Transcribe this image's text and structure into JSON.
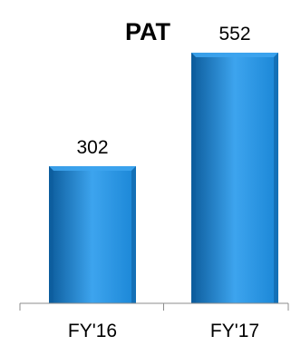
{
  "chart_data": {
    "type": "bar",
    "title": "PAT",
    "categories": [
      "FY'16",
      "FY'17"
    ],
    "values": [
      302,
      552
    ],
    "data_labels": [
      "302",
      "552"
    ],
    "xlabel": "",
    "ylabel": "",
    "ylim": [
      0,
      620
    ],
    "grid": false,
    "legend": "none",
    "colors": {
      "bar": "#1a86d6",
      "bar_light": "#3da4ee",
      "bar_dark": "#0c5c9c",
      "axis": "#8c8c8c",
      "text": "#000000"
    }
  }
}
